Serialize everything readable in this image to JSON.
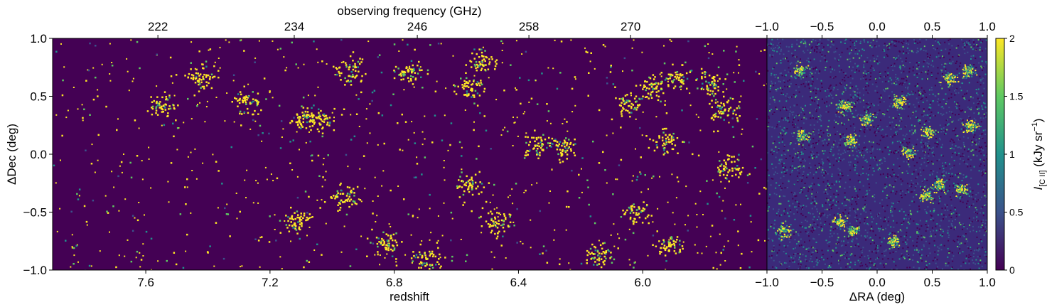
{
  "chart_data": [
    {
      "type": "heatmap",
      "panel": "lightcone",
      "title": "",
      "xlabel": "redshift",
      "x2label": "observing frequency (GHz)",
      "ylabel": "ΔDec (deg)",
      "xlim": [
        7.9,
        5.6
      ],
      "ylim": [
        -1.0,
        1.0
      ],
      "xticks": [
        {
          "value": 7.6,
          "label": "7.6"
        },
        {
          "value": 7.2,
          "label": "7.2"
        },
        {
          "value": 6.8,
          "label": "6.8"
        },
        {
          "value": 6.4,
          "label": "6.4"
        },
        {
          "value": 6.0,
          "label": "6.0"
        }
      ],
      "x2ticks": [
        {
          "value": 222,
          "label": "222"
        },
        {
          "value": 234,
          "label": "234"
        },
        {
          "value": 246,
          "label": "246"
        },
        {
          "value": 258,
          "label": "258"
        },
        {
          "value": 270,
          "label": "270"
        }
      ],
      "yticks": [
        {
          "value": 1.0,
          "label": "1.0"
        },
        {
          "value": 0.5,
          "label": "0.5"
        },
        {
          "value": 0.0,
          "label": "0.0"
        },
        {
          "value": -0.5,
          "label": "−0.5"
        },
        {
          "value": -1.0,
          "label": "−1.0"
        }
      ],
      "background_color": "#440154",
      "clusters": [
        {
          "x": 7.42,
          "y": 0.66
        },
        {
          "x": 7.27,
          "y": 0.45
        },
        {
          "x": 7.1,
          "y": 0.32
        },
        {
          "x": 7.04,
          "y": 0.3
        },
        {
          "x": 6.94,
          "y": 0.72
        },
        {
          "x": 6.76,
          "y": 0.7
        },
        {
          "x": 6.56,
          "y": 0.58
        },
        {
          "x": 6.52,
          "y": 0.8
        },
        {
          "x": 6.34,
          "y": 0.08
        },
        {
          "x": 6.26,
          "y": 0.06
        },
        {
          "x": 6.04,
          "y": 0.44
        },
        {
          "x": 5.97,
          "y": 0.58
        },
        {
          "x": 5.93,
          "y": 0.12
        },
        {
          "x": 5.89,
          "y": 0.68
        },
        {
          "x": 5.78,
          "y": 0.62
        },
        {
          "x": 5.74,
          "y": 0.38
        },
        {
          "x": 5.72,
          "y": -0.12
        },
        {
          "x": 6.56,
          "y": -0.26
        },
        {
          "x": 6.96,
          "y": -0.36
        },
        {
          "x": 7.11,
          "y": -0.58
        },
        {
          "x": 6.82,
          "y": -0.76
        },
        {
          "x": 6.47,
          "y": -0.6
        },
        {
          "x": 6.02,
          "y": -0.5
        },
        {
          "x": 5.92,
          "y": -0.78
        },
        {
          "x": 6.14,
          "y": -0.86
        },
        {
          "x": 6.7,
          "y": -0.92
        },
        {
          "x": 7.55,
          "y": 0.42
        }
      ]
    },
    {
      "type": "heatmap",
      "panel": "slice",
      "title": "",
      "xlabel": "ΔRA (deg)",
      "ylabel": "",
      "xlim": [
        -1.0,
        1.0
      ],
      "ylim": [
        -1.0,
        1.0
      ],
      "xticks": [
        {
          "value": -1.0,
          "label": "−1.0"
        },
        {
          "value": -0.5,
          "label": "−0.5"
        },
        {
          "value": 0.0,
          "label": "0.0"
        },
        {
          "value": 0.5,
          "label": "0.5"
        },
        {
          "value": 1.0,
          "label": "1.0"
        }
      ],
      "x2ticks": [
        {
          "value": -1.0,
          "label": "−1.0"
        },
        {
          "value": -0.5,
          "label": "−0.5"
        },
        {
          "value": 0.0,
          "label": "0.0"
        },
        {
          "value": 0.5,
          "label": "0.5"
        },
        {
          "value": 1.0,
          "label": "1.0"
        }
      ],
      "background_color": "#3b2a7a",
      "clusters": [
        {
          "x": -0.7,
          "y": 0.72
        },
        {
          "x": -0.3,
          "y": 0.42
        },
        {
          "x": -0.24,
          "y": 0.12
        },
        {
          "x": -0.68,
          "y": 0.16
        },
        {
          "x": 0.2,
          "y": 0.46
        },
        {
          "x": 0.46,
          "y": 0.2
        },
        {
          "x": 0.66,
          "y": 0.66
        },
        {
          "x": 0.82,
          "y": 0.72
        },
        {
          "x": 0.84,
          "y": 0.24
        },
        {
          "x": 0.56,
          "y": -0.26
        },
        {
          "x": 0.76,
          "y": -0.3
        },
        {
          "x": 0.44,
          "y": -0.36
        },
        {
          "x": -0.22,
          "y": -0.66
        },
        {
          "x": -0.34,
          "y": -0.58
        },
        {
          "x": -0.84,
          "y": -0.66
        },
        {
          "x": 0.14,
          "y": -0.74
        },
        {
          "x": -0.1,
          "y": 0.3
        },
        {
          "x": 0.28,
          "y": 0.02
        }
      ]
    }
  ],
  "colorbar": {
    "label_main": "I",
    "label_sub": "[C II]",
    "label_unit_open": " (kJy sr",
    "label_exp": "−1",
    "label_close": ")",
    "min": 0,
    "max": 2,
    "ticks": [
      {
        "value": 2,
        "label": "2"
      },
      {
        "value": 1.5,
        "label": "1.5"
      },
      {
        "value": 1,
        "label": "1"
      },
      {
        "value": 0.5,
        "label": "0.5"
      },
      {
        "value": 0,
        "label": "0"
      }
    ],
    "colormap": [
      "#440154",
      "#3b528b",
      "#21918c",
      "#5ec962",
      "#fde725"
    ]
  }
}
